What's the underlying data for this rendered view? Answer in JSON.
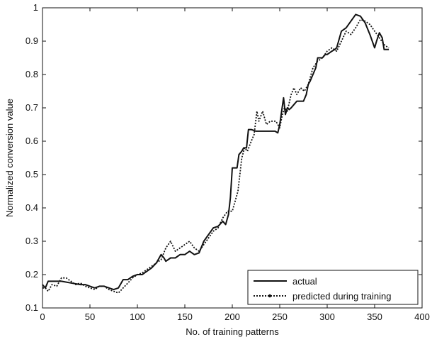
{
  "chart_data": {
    "type": "line",
    "title": "",
    "xlabel": "No. of training patterns",
    "ylabel": "Normalized conversion value",
    "xlim": [
      0,
      400
    ],
    "ylim": [
      0.1,
      1
    ],
    "xticks": [
      0,
      50,
      100,
      150,
      200,
      250,
      300,
      350,
      400
    ],
    "yticks": [
      0.1,
      0.2,
      0.3,
      0.4,
      0.5,
      0.6,
      0.7,
      0.8,
      0.9,
      1
    ],
    "grid": false,
    "legend_position": "bottom-right",
    "series": [
      {
        "name": "actual",
        "style": "solid",
        "color": "#111111",
        "x": [
          0,
          3,
          6,
          10,
          15,
          20,
          30,
          40,
          45,
          50,
          55,
          60,
          65,
          70,
          75,
          80,
          85,
          90,
          95,
          100,
          105,
          110,
          115,
          120,
          125,
          128,
          130,
          135,
          140,
          145,
          150,
          155,
          160,
          165,
          170,
          175,
          180,
          185,
          190,
          193,
          196,
          198,
          200,
          203,
          205,
          207,
          210,
          212,
          215,
          217,
          219,
          220,
          225,
          230,
          235,
          240,
          245,
          248,
          250,
          252,
          254,
          256,
          258,
          260,
          262,
          265,
          268,
          270,
          272,
          275,
          278,
          280,
          282,
          285,
          288,
          290,
          292,
          295,
          298,
          300,
          305,
          308,
          310,
          315,
          320,
          325,
          330,
          335,
          340,
          345,
          350,
          352,
          355,
          358,
          360,
          362,
          365
        ],
        "y": [
          0.17,
          0.16,
          0.18,
          0.18,
          0.18,
          0.18,
          0.175,
          0.17,
          0.17,
          0.165,
          0.16,
          0.165,
          0.165,
          0.16,
          0.155,
          0.16,
          0.185,
          0.185,
          0.195,
          0.2,
          0.2,
          0.21,
          0.22,
          0.235,
          0.26,
          0.25,
          0.24,
          0.25,
          0.25,
          0.26,
          0.26,
          0.27,
          0.26,
          0.265,
          0.3,
          0.32,
          0.34,
          0.345,
          0.36,
          0.35,
          0.38,
          0.43,
          0.52,
          0.52,
          0.52,
          0.56,
          0.57,
          0.58,
          0.58,
          0.635,
          0.635,
          0.635,
          0.63,
          0.63,
          0.63,
          0.63,
          0.63,
          0.625,
          0.65,
          0.69,
          0.73,
          0.68,
          0.7,
          0.695,
          0.7,
          0.71,
          0.72,
          0.72,
          0.72,
          0.72,
          0.74,
          0.77,
          0.78,
          0.8,
          0.82,
          0.85,
          0.85,
          0.85,
          0.86,
          0.86,
          0.87,
          0.875,
          0.88,
          0.93,
          0.94,
          0.96,
          0.98,
          0.975,
          0.955,
          0.92,
          0.88,
          0.9,
          0.925,
          0.91,
          0.875,
          0.875,
          0.875
        ]
      },
      {
        "name": "predicted during training",
        "style": "dotted",
        "color": "#111111",
        "x": [
          0,
          3,
          6,
          10,
          15,
          20,
          25,
          30,
          35,
          40,
          45,
          50,
          55,
          60,
          65,
          70,
          75,
          80,
          85,
          90,
          95,
          100,
          105,
          110,
          115,
          120,
          125,
          130,
          135,
          140,
          145,
          150,
          155,
          160,
          165,
          170,
          175,
          180,
          185,
          190,
          195,
          200,
          203,
          206,
          208,
          210,
          213,
          216,
          220,
          223,
          226,
          228,
          232,
          236,
          240,
          243,
          246,
          250,
          252,
          255,
          258,
          262,
          265,
          268,
          272,
          276,
          280,
          285,
          290,
          295,
          300,
          305,
          310,
          315,
          320,
          325,
          330,
          335,
          340,
          345,
          350,
          355,
          360,
          362,
          365
        ],
        "y": [
          0.16,
          0.16,
          0.15,
          0.17,
          0.165,
          0.19,
          0.19,
          0.18,
          0.17,
          0.175,
          0.165,
          0.16,
          0.155,
          0.165,
          0.165,
          0.155,
          0.15,
          0.145,
          0.16,
          0.175,
          0.19,
          0.2,
          0.205,
          0.215,
          0.225,
          0.235,
          0.245,
          0.28,
          0.3,
          0.27,
          0.28,
          0.29,
          0.3,
          0.28,
          0.27,
          0.29,
          0.31,
          0.33,
          0.34,
          0.37,
          0.39,
          0.39,
          0.42,
          0.45,
          0.5,
          0.55,
          0.58,
          0.57,
          0.6,
          0.62,
          0.69,
          0.66,
          0.69,
          0.65,
          0.66,
          0.66,
          0.66,
          0.64,
          0.67,
          0.7,
          0.69,
          0.74,
          0.76,
          0.74,
          0.76,
          0.75,
          0.77,
          0.82,
          0.84,
          0.85,
          0.87,
          0.88,
          0.87,
          0.9,
          0.93,
          0.92,
          0.94,
          0.965,
          0.96,
          0.95,
          0.93,
          0.91,
          0.89,
          0.885,
          0.88
        ]
      }
    ]
  }
}
